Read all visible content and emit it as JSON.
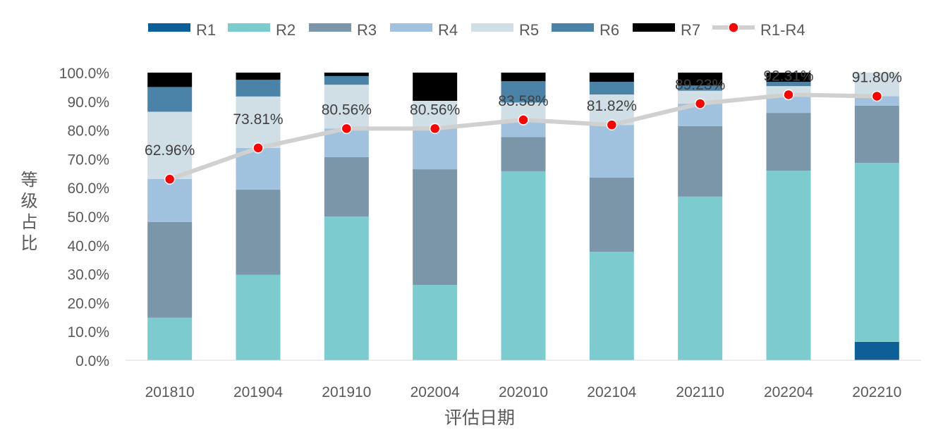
{
  "chart_data": {
    "type": "bar",
    "stacked": true,
    "title": "",
    "xlabel": "评估日期",
    "ylabel": "等级占比",
    "ylim": [
      0,
      100
    ],
    "yticks": [
      "0.0%",
      "10.0%",
      "20.0%",
      "30.0%",
      "40.0%",
      "50.0%",
      "60.0%",
      "70.0%",
      "80.0%",
      "90.0%",
      "100.0%"
    ],
    "legend_position": "top",
    "categories": [
      "201810",
      "201904",
      "201910",
      "202004",
      "202010",
      "202104",
      "202110",
      "202204",
      "202210"
    ],
    "series": [
      {
        "name": "R1",
        "color": "#0e5e98",
        "values": [
          0,
          0,
          0,
          0,
          0,
          0,
          0,
          0,
          6.4
        ]
      },
      {
        "name": "R2",
        "color": "#7ccbcf",
        "values": [
          14.8,
          29.7,
          50.0,
          26.2,
          65.7,
          37.7,
          56.9,
          65.9,
          62.2
        ]
      },
      {
        "name": "R3",
        "color": "#7a96a8",
        "values": [
          33.3,
          29.6,
          20.6,
          40.2,
          11.9,
          25.8,
          24.5,
          20.1,
          19.9
        ]
      },
      {
        "name": "R4",
        "color": "#a0c2df",
        "values": [
          14.9,
          14.5,
          10.0,
          14.2,
          6.0,
          18.3,
          7.8,
          6.3,
          3.3
        ]
      },
      {
        "name": "R5",
        "color": "#d0dfe6",
        "values": [
          23.4,
          17.9,
          15.2,
          9.6,
          6.0,
          10.6,
          4.5,
          3.0,
          8.2
        ]
      },
      {
        "name": "R6",
        "color": "#4a82a8",
        "values": [
          8.6,
          5.8,
          3.0,
          0,
          7.4,
          4.4,
          1.8,
          1.5,
          0
        ]
      },
      {
        "name": "R7",
        "color": "#000000",
        "values": [
          5.0,
          2.5,
          1.2,
          9.8,
          3.0,
          3.2,
          4.5,
          3.2,
          0
        ]
      }
    ],
    "line_series": {
      "name": "R1-R4",
      "line_color": "#d0d0d0",
      "marker_color": "#ff0000",
      "values": [
        62.96,
        73.81,
        80.56,
        80.56,
        83.58,
        81.82,
        89.23,
        92.31,
        91.8
      ],
      "labels": [
        "62.96%",
        "73.81%",
        "80.56%",
        "80.56%",
        "83.58%",
        "81.82%",
        "89.23%",
        "92.31%",
        "91.80%"
      ]
    }
  }
}
